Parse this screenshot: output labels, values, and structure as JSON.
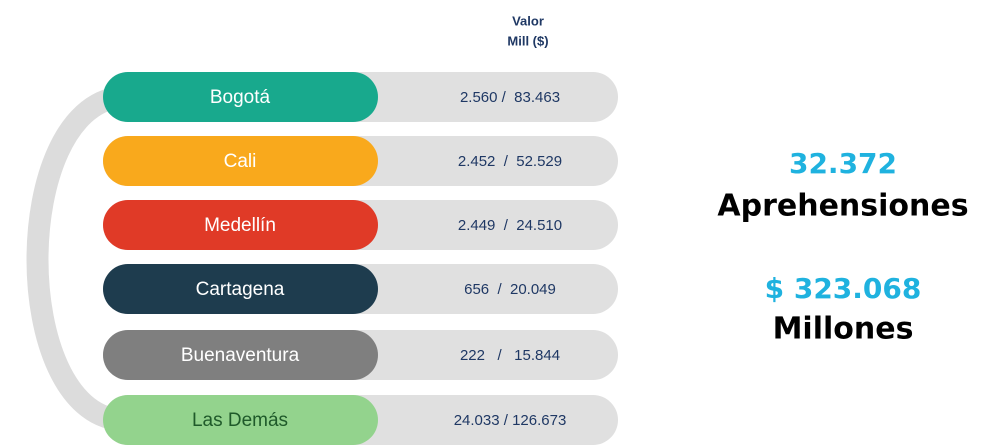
{
  "header": {
    "title": [
      "Valor",
      "Mill ($)"
    ]
  },
  "rows": [
    {
      "label": "Bogotá",
      "value": "2.560 /  83.463",
      "color": "#18a98d",
      "text_color": "#ffffff"
    },
    {
      "label": "Cali",
      "value": "2.452  /  52.529",
      "color": "#f9a91c",
      "text_color": "#ffffff"
    },
    {
      "label": "Medellín",
      "value": "2.449  /  24.510",
      "color": "#e03a27",
      "text_color": "#ffffff"
    },
    {
      "label": "Cartagena",
      "value": "656  /  20.049",
      "color": "#1e3c4e",
      "text_color": "#ffffff"
    },
    {
      "label": "Buenaventura",
      "value": "222   /   15.844",
      "color": "#7f7f7f",
      "text_color": "#ffffff"
    },
    {
      "label": "Las Demás",
      "value": "24.033 / 126.673",
      "color": "#93d38d",
      "text_color": "#1f5a2a"
    }
  ],
  "summary": {
    "count": "32.372",
    "count_label": "Aprehensiones",
    "amount": "$ 323.068",
    "amount_label": "Millones"
  }
}
